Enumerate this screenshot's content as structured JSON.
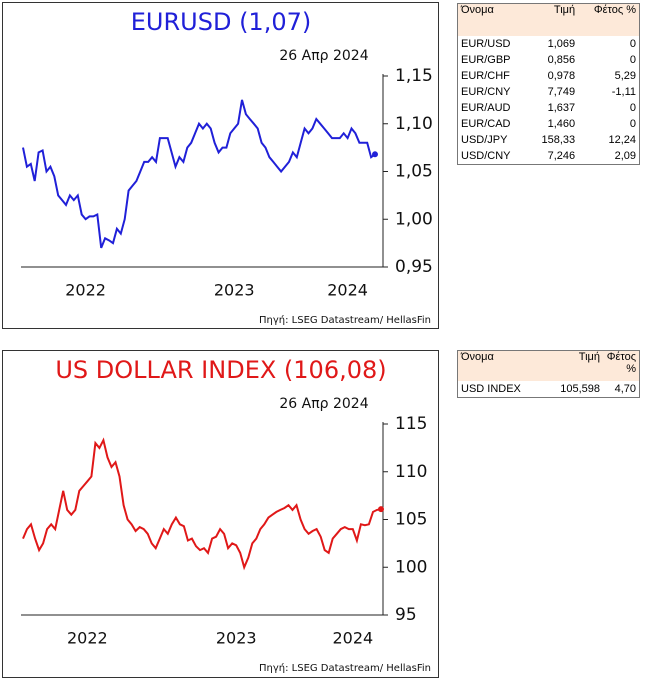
{
  "chart_data": [
    {
      "type": "line",
      "title": "EURUSD (1,07)",
      "date": "26 Απρ 2024",
      "source": "Πηγή: LSEG Datastream/ HellasFin",
      "color": "#2020d8",
      "last_marker": true,
      "categories": [
        null,
        null,
        null,
        null,
        null,
        null,
        null,
        null,
        null,
        null,
        null,
        null,
        null,
        null,
        null,
        null,
        "2022",
        null,
        null,
        null,
        null,
        null,
        null,
        null,
        null,
        null,
        null,
        null,
        null,
        null,
        null,
        null,
        null,
        null,
        null,
        null,
        null,
        null,
        null,
        null,
        null,
        null,
        null,
        null,
        null,
        null,
        null,
        null,
        null,
        null,
        null,
        null,
        null,
        null,
        "2023",
        null,
        null,
        null,
        null,
        null,
        null,
        null,
        null,
        null,
        null,
        null,
        null,
        null,
        null,
        null,
        null,
        null,
        null,
        null,
        null,
        null,
        null,
        null,
        null,
        null,
        null,
        null,
        null,
        "2024",
        null,
        null,
        null,
        null,
        null,
        null,
        null
      ],
      "values": [
        1.075,
        1.055,
        1.058,
        1.04,
        1.07,
        1.072,
        1.05,
        1.055,
        1.045,
        1.025,
        1.02,
        1.015,
        1.025,
        1.02,
        1.025,
        1.005,
        1.0,
        1.003,
        1.003,
        1.005,
        0.97,
        0.98,
        0.978,
        0.975,
        0.99,
        0.985,
        1.0,
        1.03,
        1.035,
        1.04,
        1.05,
        1.06,
        1.06,
        1.065,
        1.06,
        1.085,
        1.085,
        1.085,
        1.07,
        1.055,
        1.065,
        1.06,
        1.075,
        1.08,
        1.09,
        1.1,
        1.095,
        1.1,
        1.095,
        1.08,
        1.07,
        1.075,
        1.075,
        1.09,
        1.095,
        1.1,
        1.125,
        1.11,
        1.105,
        1.1,
        1.095,
        1.08,
        1.075,
        1.065,
        1.06,
        1.055,
        1.05,
        1.055,
        1.06,
        1.07,
        1.065,
        1.08,
        1.095,
        1.09,
        1.095,
        1.105,
        1.1,
        1.095,
        1.09,
        1.085,
        1.085,
        1.085,
        1.09,
        1.085,
        1.095,
        1.09,
        1.08,
        1.08,
        1.08,
        1.065,
        1.068
      ],
      "ylim": [
        0.95,
        1.15
      ],
      "yticks": [
        {
          "value": 0.95,
          "label": "0,95"
        },
        {
          "value": 1.0,
          "label": "1,00"
        },
        {
          "value": 1.05,
          "label": "1,05"
        },
        {
          "value": 1.1,
          "label": "1,10"
        },
        {
          "value": 1.15,
          "label": "1,15"
        }
      ]
    },
    {
      "type": "line",
      "title": "US DOLLAR INDEX (106,08)",
      "date": "26 Απρ 2024",
      "source": "Πηγή: LSEG Datastream/ HellasFin",
      "color": "#e01818",
      "last_marker": true,
      "categories": [
        null,
        null,
        null,
        null,
        null,
        null,
        null,
        null,
        null,
        null,
        null,
        null,
        null,
        null,
        null,
        null,
        "2022",
        null,
        null,
        null,
        null,
        null,
        null,
        null,
        null,
        null,
        null,
        null,
        null,
        null,
        null,
        null,
        null,
        null,
        null,
        null,
        null,
        null,
        null,
        null,
        null,
        null,
        null,
        null,
        null,
        null,
        null,
        null,
        null,
        null,
        null,
        null,
        null,
        "2023",
        null,
        null,
        null,
        null,
        null,
        null,
        null,
        null,
        null,
        null,
        null,
        null,
        null,
        null,
        null,
        null,
        null,
        null,
        null,
        null,
        null,
        null,
        null,
        null,
        null,
        null,
        null,
        null,
        "2024",
        null,
        null,
        null,
        null,
        null,
        null,
        null
      ],
      "values": [
        103,
        104,
        104.5,
        103,
        101.8,
        102.5,
        104,
        104.5,
        104,
        106,
        108,
        106,
        105.5,
        106,
        108,
        108.5,
        109,
        109.5,
        113,
        112.5,
        113.3,
        111.5,
        110.5,
        111,
        109.5,
        106.5,
        105,
        104.5,
        103.8,
        104.2,
        104,
        103.5,
        102.5,
        102,
        103,
        104,
        103.5,
        104.5,
        105.2,
        104.5,
        104.3,
        102.8,
        103,
        102.2,
        101.8,
        102,
        101.5,
        103,
        103.2,
        104,
        103.5,
        102,
        102.5,
        102.3,
        101.5,
        100,
        101,
        102.5,
        103,
        104,
        104.5,
        105.2,
        105.5,
        105.8,
        106,
        106.2,
        106.5,
        106,
        106.5,
        105,
        104,
        103.5,
        103.8,
        104,
        103.2,
        101.8,
        101.5,
        103,
        103.5,
        104,
        104.2,
        104,
        104,
        102.8,
        104.5,
        104.4,
        104.5,
        105.8,
        106,
        106.08
      ],
      "ylim": [
        95,
        115
      ],
      "yticks": [
        95,
        100,
        105,
        110,
        115
      ]
    }
  ],
  "tables": [
    {
      "header": [
        "Όνομα",
        "Τιμή",
        "Φέτος %"
      ],
      "rows": [
        [
          "EUR/USD",
          "1,069",
          "0"
        ],
        [
          "EUR/GBP",
          "0,856",
          "0"
        ],
        [
          "EUR/CHF",
          "0,978",
          "5,29"
        ],
        [
          "EUR/CNY",
          "7,749",
          "-1,11"
        ],
        [
          "EUR/AUD",
          "1,637",
          "0"
        ],
        [
          "EUR/CAD",
          "1,460",
          "0"
        ],
        [
          "USD/JPY",
          "158,33",
          "12,24"
        ],
        [
          "USD/CNY",
          "7,246",
          "2,09"
        ]
      ]
    },
    {
      "header": [
        "Όνομα",
        "Τιμή",
        "Φέτος %"
      ],
      "rows": [
        [
          "USD INDEX",
          "105,598",
          "4,70"
        ]
      ]
    }
  ]
}
